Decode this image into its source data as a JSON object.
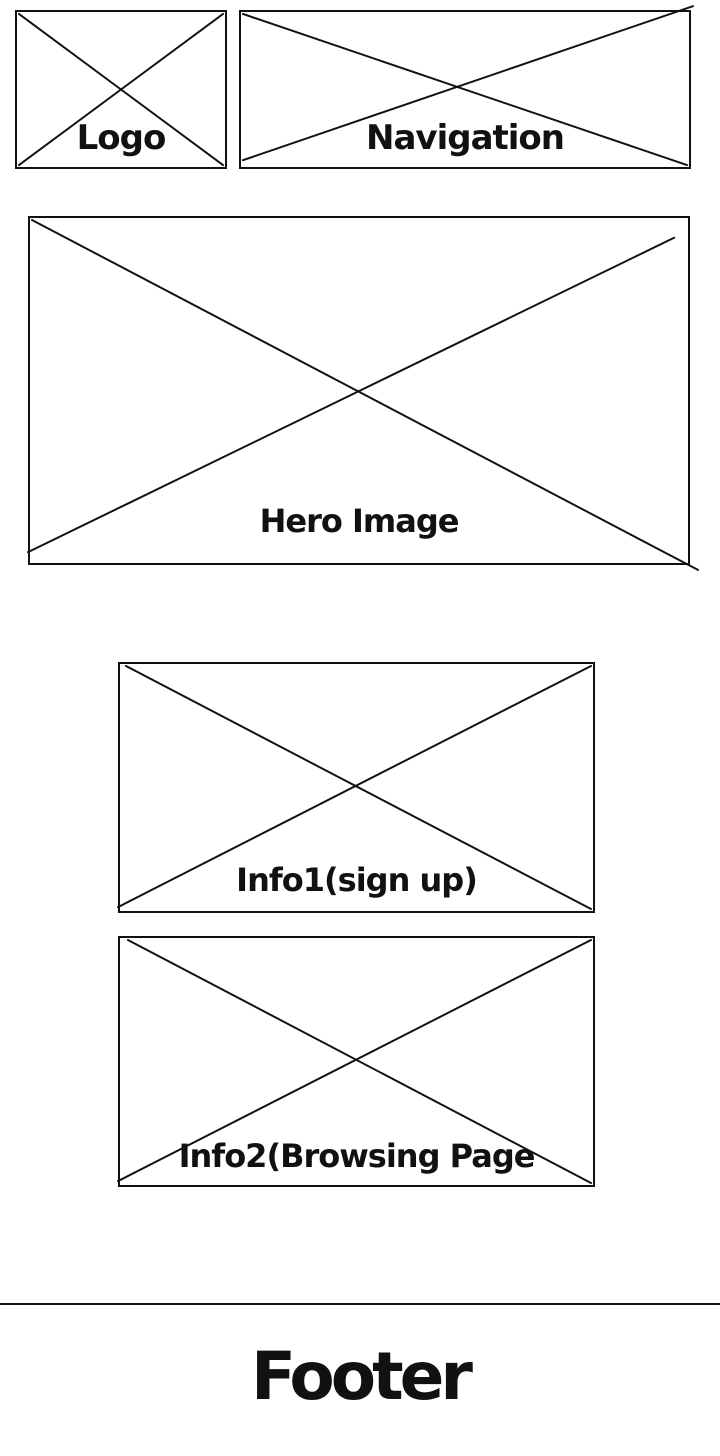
{
  "logo": {
    "label": "Logo"
  },
  "navigation": {
    "label": "Navigation"
  },
  "hero": {
    "label": "Hero Image"
  },
  "info1": {
    "label": "Info1(sign up)"
  },
  "info2": {
    "label": "Info2(Browsing Page"
  },
  "footer": {
    "label": "Footer"
  },
  "colors": {
    "line": "#111111",
    "background": "#ffffff"
  }
}
